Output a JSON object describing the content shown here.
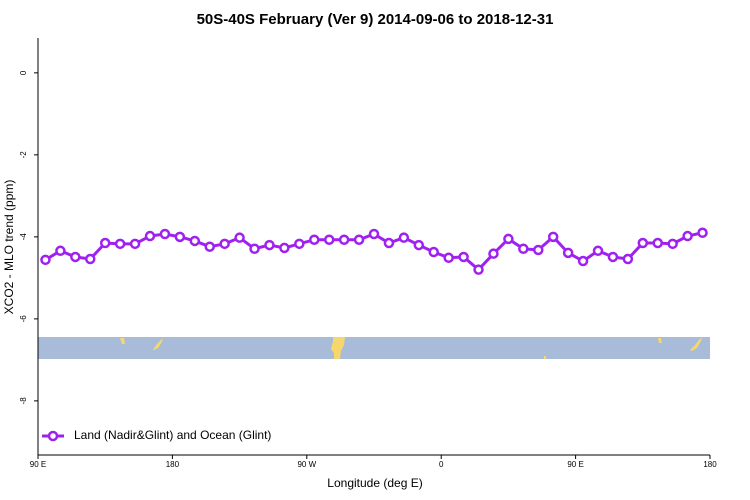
{
  "chart_data": {
    "type": "line",
    "title": "50S-40S February (Ver 9)   2014-09-06 to 2018-12-31",
    "x_label": "Longitude (deg E)",
    "y_label": "XCO2 - MLO trend (ppm)",
    "x": [
      95,
      105,
      115,
      125,
      135,
      145,
      155,
      165,
      175,
      185,
      195,
      205,
      215,
      225,
      235,
      245,
      255,
      265,
      275,
      285,
      295,
      305,
      315,
      325,
      335,
      345,
      355,
      365,
      375,
      385,
      395,
      405,
      415,
      425,
      435,
      445,
      455,
      465,
      475,
      485,
      495,
      505,
      515,
      525,
      535
    ],
    "series": [
      {
        "name": "Land (Nadir&Glint) and Ocean (Glint)",
        "color": "#a020f0",
        "values": [
          -4.56,
          -4.34,
          -4.49,
          -4.54,
          -4.15,
          -4.17,
          -4.17,
          -3.98,
          -3.93,
          -4.0,
          -4.1,
          -4.24,
          -4.17,
          -4.02,
          -4.29,
          -4.2,
          -4.27,
          -4.17,
          -4.07,
          -4.07,
          -4.07,
          -4.07,
          -3.93,
          -4.15,
          -4.02,
          -4.2,
          -4.37,
          -4.51,
          -4.49,
          -4.8,
          -4.41,
          -4.05,
          -4.29,
          -4.32,
          -4.0,
          -4.39,
          -4.59,
          -4.34,
          -4.49,
          -4.54,
          -4.15,
          -4.15,
          -4.17,
          -3.98,
          -3.9
        ]
      }
    ],
    "xlim": [
      90,
      540
    ],
    "xticks": [
      {
        "value": 90,
        "label": "90 E"
      },
      {
        "value": 180,
        "label": "180"
      },
      {
        "value": 270,
        "label": "90 W"
      },
      {
        "value": 360,
        "label": "0"
      },
      {
        "value": 450,
        "label": "90 E"
      },
      {
        "value": 540,
        "label": "180"
      }
    ],
    "ylim": [
      -9.32,
      0.85
    ],
    "yticks": [
      0,
      -2,
      -4,
      -6,
      -8
    ],
    "legend": "bottom-left"
  }
}
